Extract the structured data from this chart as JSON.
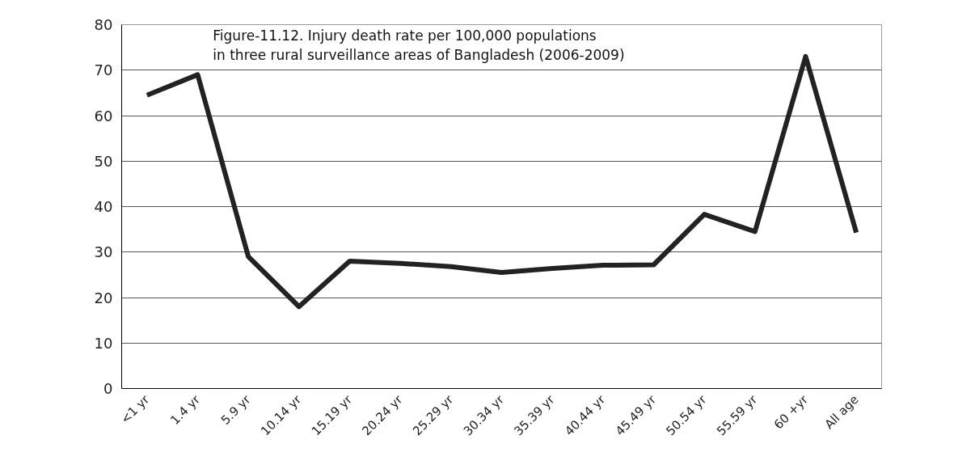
{
  "chart_data": {
    "type": "line",
    "title": "Figure-11.12. Injury death rate per 100,000 populations\nin three rural surveillance areas of Bangladesh (2006-2009)",
    "categories": [
      "<1 yr",
      "1.4 yr",
      "5.9 yr",
      "10.14 yr",
      "15.19 yr",
      "20.24 yr",
      "25.29 yr",
      "30.34 yr",
      "35.39 yr",
      "40.44 yr",
      "45.49 yr",
      "50.54 yr",
      "55.59 yr",
      "60 +yr",
      "All age"
    ],
    "series": [
      {
        "color": "#222222",
        "values": [
          64.5,
          69,
          29,
          18,
          28,
          27.5,
          26.8,
          25.5,
          26.4,
          27.1,
          27.2,
          38.3,
          34.5,
          73,
          34.3
        ]
      }
    ],
    "ylim": [
      0,
      80
    ],
    "yticks": [
      0,
      10,
      20,
      30,
      40,
      50,
      60,
      70,
      80
    ],
    "grid": "y",
    "marker": "none",
    "line_style": "solid"
  }
}
